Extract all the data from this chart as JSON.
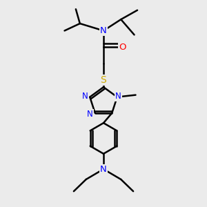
{
  "bg_color": "#ebebeb",
  "atom_colors": {
    "C": "#000000",
    "N": "#0000ff",
    "O": "#ff0000",
    "S": "#ccaa00",
    "H": "#000000"
  },
  "bond_color": "#000000",
  "bond_width": 1.8,
  "fig_size": [
    3.0,
    3.0
  ],
  "dpi": 100
}
